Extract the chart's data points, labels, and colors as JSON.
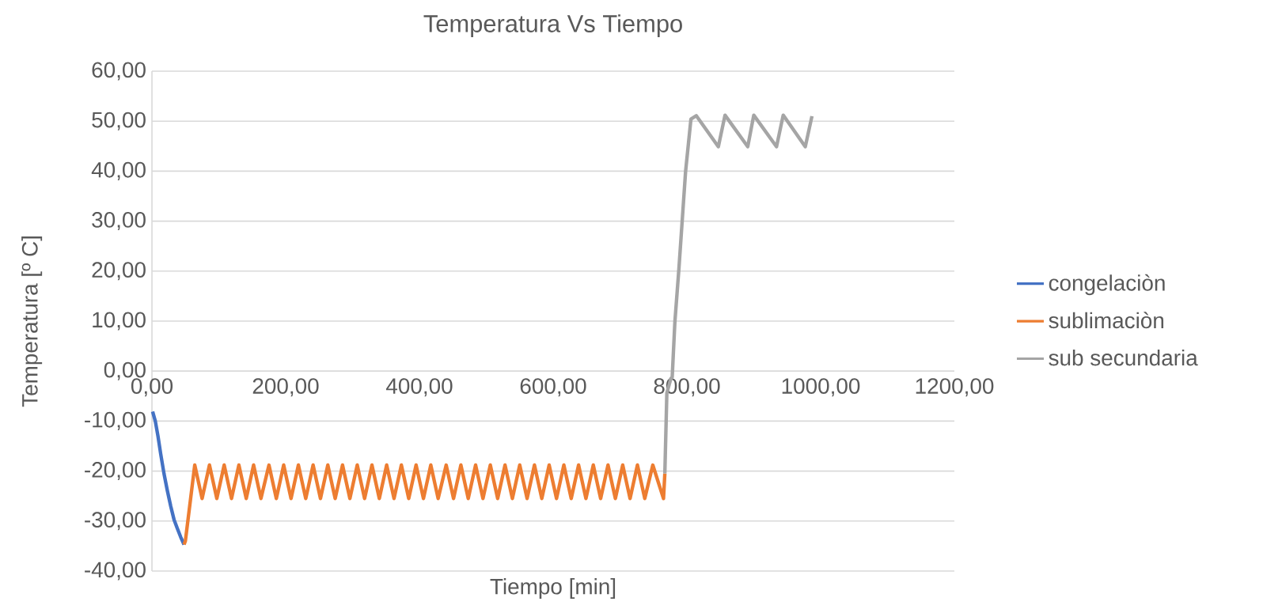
{
  "chart_data": {
    "type": "line",
    "title": "Temperatura Vs Tiempo",
    "xlabel": "Tiempo [min]",
    "ylabel": "Temperatura [º C]",
    "xlim": [
      0,
      1200
    ],
    "ylim": [
      -40,
      60
    ],
    "xticks": [
      {
        "value": 0,
        "label": "0,00"
      },
      {
        "value": 200,
        "label": "200,00"
      },
      {
        "value": 400,
        "label": "400,00"
      },
      {
        "value": 600,
        "label": "600,00"
      },
      {
        "value": 800,
        "label": "800,00"
      },
      {
        "value": 1000,
        "label": "1000,00"
      },
      {
        "value": 1200,
        "label": "1200,00"
      }
    ],
    "yticks": [
      {
        "value": -40,
        "label": "-40,00"
      },
      {
        "value": -30,
        "label": "-30,00"
      },
      {
        "value": -20,
        "label": "-20,00"
      },
      {
        "value": -10,
        "label": "-10,00"
      },
      {
        "value": 0,
        "label": "0,00"
      },
      {
        "value": 10,
        "label": "10,00"
      },
      {
        "value": 20,
        "label": "20,00"
      },
      {
        "value": 30,
        "label": "30,00"
      },
      {
        "value": 40,
        "label": "40,00"
      },
      {
        "value": 50,
        "label": "50,00"
      },
      {
        "value": 60,
        "label": "60,00"
      }
    ],
    "grid": "y",
    "legend": "right",
    "marker": "none",
    "line_style": "solid",
    "series": [
      {
        "name": "congelaciòn",
        "color": "#4472c4",
        "x": [
          1,
          5,
          9,
          13,
          18,
          23,
          28,
          33,
          38,
          43,
          48
        ],
        "values": [
          -8.1,
          -10,
          -13,
          -16.5,
          -20.5,
          -23.9,
          -27,
          -29.7,
          -31.5,
          -33.2,
          -34.7
        ]
      },
      {
        "name": "sublimaciòn",
        "color": "#ed7d31",
        "x": [
          48,
          50,
          64,
          75,
          86,
          97,
          108,
          119,
          130,
          141,
          152,
          163,
          175,
          186,
          197,
          208,
          219,
          230,
          241,
          252,
          263,
          274,
          285,
          296,
          307,
          318,
          329,
          340,
          351,
          362,
          373,
          384,
          395,
          406,
          417,
          428,
          440,
          451,
          462,
          473,
          484,
          495,
          506,
          517,
          528,
          539,
          550,
          561,
          572,
          583,
          594,
          605,
          616,
          627,
          638,
          649,
          660,
          671,
          682,
          693,
          704,
          715,
          726,
          737,
          749,
          765,
          767
        ],
        "values": [
          -34.7,
          -34,
          -18.8,
          -25.5,
          -18.8,
          -25.5,
          -18.8,
          -25.5,
          -18.8,
          -25.5,
          -18.8,
          -25.5,
          -18.8,
          -25.5,
          -18.8,
          -25.5,
          -18.8,
          -25.5,
          -18.8,
          -25.5,
          -18.8,
          -25.5,
          -18.8,
          -25.5,
          -18.8,
          -25.5,
          -18.8,
          -25.5,
          -18.8,
          -25.5,
          -18.8,
          -25.5,
          -18.8,
          -25.5,
          -18.8,
          -25.5,
          -18.8,
          -25.5,
          -18.8,
          -25.5,
          -18.8,
          -25.5,
          -18.8,
          -25.5,
          -18.8,
          -25.5,
          -18.8,
          -25.5,
          -18.8,
          -25.5,
          -18.8,
          -25.5,
          -18.8,
          -25.5,
          -18.8,
          -25.5,
          -18.8,
          -25.5,
          -18.8,
          -25.5,
          -18.8,
          -25.5,
          -18.8,
          -25.5,
          -18.8,
          -25.5,
          -20.5
        ]
      },
      {
        "name": "sub secundaria",
        "color": "#a5a5a5",
        "x": [
          767,
          770,
          776,
          778,
          782,
          788,
          798,
          806,
          814,
          847,
          857,
          891,
          900,
          934,
          944,
          977,
          987
        ],
        "values": [
          -20.5,
          -4.4,
          -1.5,
          -1.2,
          9.8,
          20.4,
          39.9,
          50.4,
          51.1,
          44.9,
          51.2,
          44.9,
          51.2,
          44.9,
          51.2,
          44.9,
          51
        ]
      }
    ]
  }
}
